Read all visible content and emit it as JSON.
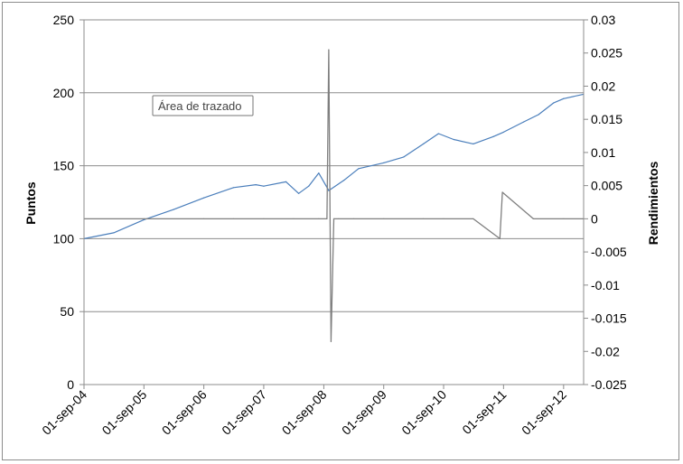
{
  "chart_data": {
    "type": "line",
    "xlabel": "",
    "ylabel": "Puntos",
    "ylabel_right": "Rendimientos",
    "x_tick_labels": [
      "01-sep-04",
      "01-sep-05",
      "01-sep-06",
      "01-sep-07",
      "01-sep-08",
      "01-sep-09",
      "01-sep-10",
      "01-sep-11",
      "01-sep-12"
    ],
    "x_range": [
      "2004-09-01",
      "2013-01-01"
    ],
    "ylim_left": [
      0,
      250
    ],
    "y_ticks_left": [
      0,
      50,
      100,
      150,
      200,
      250
    ],
    "ylim_right": [
      -0.025,
      0.03
    ],
    "y_ticks_right": [
      -0.025,
      -0.02,
      -0.015,
      -0.01,
      -0.005,
      0,
      0.005,
      0.01,
      0.015,
      0.02,
      0.025,
      0.03
    ],
    "grid": "horizontal at left-axis ticks",
    "tooltip": "Área de trazado",
    "series": [
      {
        "axis": "left",
        "color": "#4a7ebb",
        "x": [
          "2004-09-01",
          "2005-03-01",
          "2005-09-01",
          "2006-03-01",
          "2006-09-01",
          "2007-03-01",
          "2007-07-15",
          "2007-09-01",
          "2008-01-15",
          "2008-04-01",
          "2008-06-01",
          "2008-08-01",
          "2008-10-01",
          "2009-01-01",
          "2009-04-01",
          "2009-09-01",
          "2010-01-01",
          "2010-05-01",
          "2010-08-01",
          "2010-11-01",
          "2011-03-01",
          "2011-07-01",
          "2011-09-01",
          "2012-01-01",
          "2012-04-01",
          "2012-07-01",
          "2012-09-01",
          "2012-12-31"
        ],
        "y": [
          100,
          104,
          113,
          120,
          128,
          135,
          137,
          136,
          139,
          131,
          136,
          145,
          133,
          140,
          148,
          152,
          156,
          165,
          172,
          168,
          165,
          170,
          173,
          180,
          185,
          193,
          196,
          199
        ]
      },
      {
        "axis": "right",
        "color": "#7f7f7f",
        "x": [
          "2004-09-01",
          "2005-09-01",
          "2006-09-01",
          "2007-03-01",
          "2007-09-01",
          "2008-03-01",
          "2008-08-01",
          "2008-09-20",
          "2008-10-01",
          "2008-10-15",
          "2008-11-01",
          "2008-12-01",
          "2009-03-01",
          "2009-09-01",
          "2010-05-01",
          "2010-09-01",
          "2011-03-01",
          "2011-08-10",
          "2011-08-25",
          "2012-03-01",
          "2012-09-01",
          "2012-12-31"
        ],
        "y": [
          0.0,
          0.0,
          0.0,
          0.0,
          0.0,
          0.0,
          0.0,
          0.0,
          0.0255,
          -0.0185,
          0.0,
          0.0,
          0.0,
          0.0,
          0.0,
          0.0,
          0.0,
          -0.003,
          0.004,
          0.0,
          0.0,
          0.0
        ]
      }
    ]
  }
}
